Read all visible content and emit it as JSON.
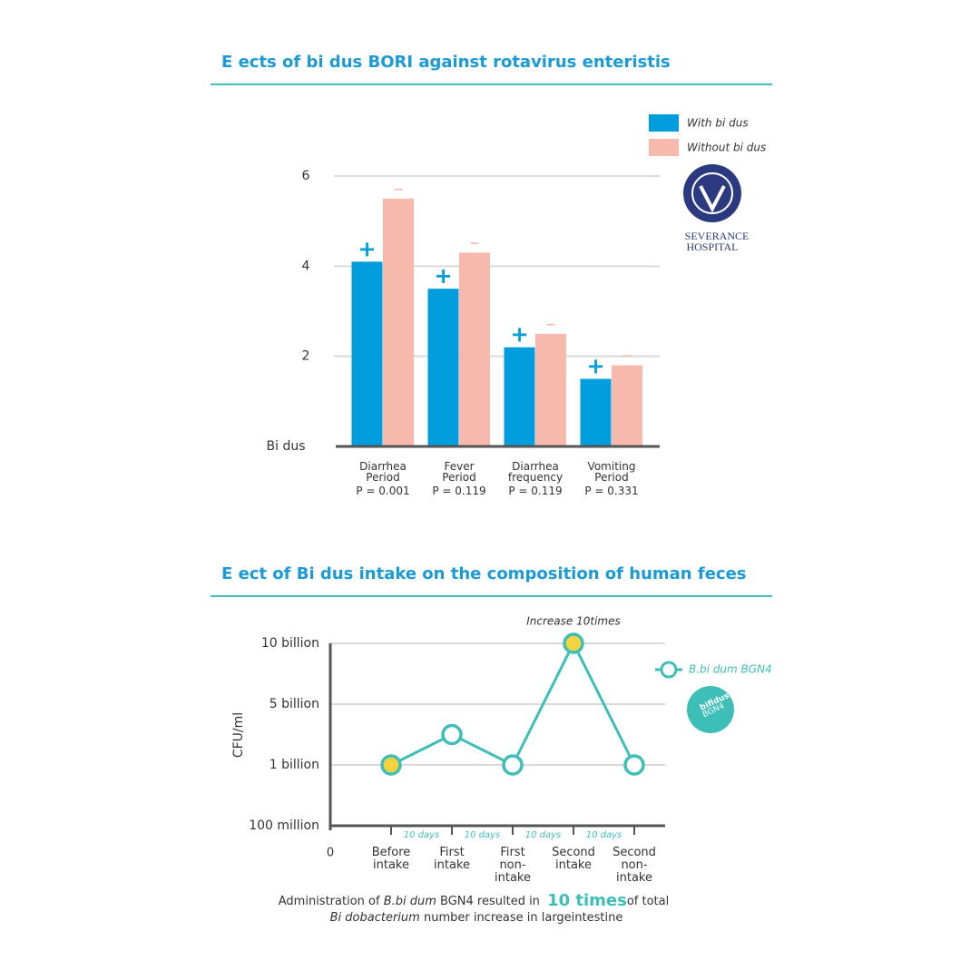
{
  "chart_data": [
    {
      "type": "bar",
      "title": "E ects of bi dus BORI against rotavirus enteristis",
      "categories": [
        "Diarrhea Period",
        "Fever Period",
        "Diarrhea frequency",
        "Vomiting Period"
      ],
      "p_values": [
        "P = 0.001",
        "P = 0.119",
        "P = 0.119",
        "P = 0.331"
      ],
      "ylabel": "Bi dus",
      "series": [
        {
          "name": "With bi dus",
          "color": "#009ddc",
          "marker": "+",
          "values": [
            4.1,
            3.5,
            2.2,
            1.5
          ]
        },
        {
          "name": "Without bi dus",
          "color": "#f7b9ab",
          "marker": "−",
          "values": [
            5.5,
            4.3,
            2.5,
            1.8
          ]
        }
      ],
      "ylim": [
        0,
        6
      ],
      "yticks": [
        2,
        4,
        6
      ],
      "grid": true,
      "logo_text": [
        "SEVERANCE",
        "HOSPITAL"
      ]
    },
    {
      "type": "line",
      "title": "E ect of Bi dus intake on the composition of human feces",
      "categories": [
        "Before intake",
        "First intake",
        "First non-intake",
        "Second intake",
        "Second non-intake"
      ],
      "interval_labels": [
        "10 days",
        "10 days",
        "10 days",
        "10 days"
      ],
      "origin_label": "0",
      "ylabel": "CFU/ml",
      "annotation": "Increase 10times",
      "series": [
        {
          "name": "B.bi dum BGN4",
          "color": "#3dbfb8",
          "values": [
            1000000000,
            3000000000,
            1000000000,
            10000000000,
            1000000000
          ],
          "highlighted": [
            true,
            false,
            false,
            true,
            false
          ],
          "highlight_color": "#f5d33c"
        }
      ],
      "ylim": [
        100000000,
        10000000000
      ],
      "yticks": [
        {
          "value": 100000000,
          "label": "100 million"
        },
        {
          "value": 1000000000,
          "label": "1 billion"
        },
        {
          "value": 5000000000,
          "label": "5 billion"
        },
        {
          "value": 10000000000,
          "label": "10 billion"
        }
      ],
      "grid": true,
      "logo_text": [
        "bifidus",
        "BGN4"
      ],
      "footnote": [
        [
          "Administration of ",
          "B.bi dum",
          " BGN4 resulted in ",
          "10 times",
          "of total"
        ],
        [
          "Bi dobacterium",
          " number increase in largeintestine"
        ]
      ]
    }
  ]
}
